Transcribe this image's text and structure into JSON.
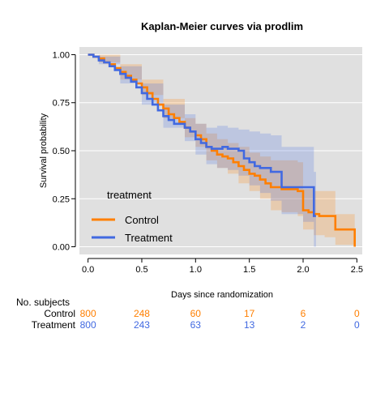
{
  "chart_data": {
    "type": "line",
    "title": "Kaplan-Meier curves via prodlim",
    "xlabel": "Days since randomization",
    "ylabel": "Survival probability",
    "xlim": [
      -0.08,
      2.55
    ],
    "ylim": [
      -0.04,
      1.04
    ],
    "x_ticks": [
      0.0,
      0.5,
      1.0,
      1.5,
      2.0,
      2.5
    ],
    "x_tick_labels": [
      "0.0",
      "0.5",
      "1.0",
      "1.5",
      "2.0",
      "2.5"
    ],
    "y_ticks": [
      0.0,
      0.25,
      0.5,
      0.75,
      1.0
    ],
    "y_tick_labels": [
      "0.00",
      "0.25",
      "0.50",
      "0.75",
      "1.00"
    ],
    "grid": true,
    "background": "#e0e0e0",
    "legend": {
      "title": "treatment",
      "position": "bottom-left"
    },
    "series": [
      {
        "name": "Control",
        "color": "#ff7f00",
        "points": [
          [
            0.0,
            1.0
          ],
          [
            0.05,
            0.99
          ],
          [
            0.1,
            0.98
          ],
          [
            0.15,
            0.96
          ],
          [
            0.2,
            0.95
          ],
          [
            0.25,
            0.93
          ],
          [
            0.3,
            0.91
          ],
          [
            0.35,
            0.89
          ],
          [
            0.4,
            0.87
          ],
          [
            0.45,
            0.85
          ],
          [
            0.5,
            0.83
          ],
          [
            0.55,
            0.8
          ],
          [
            0.6,
            0.77
          ],
          [
            0.65,
            0.74
          ],
          [
            0.7,
            0.72
          ],
          [
            0.75,
            0.69
          ],
          [
            0.8,
            0.67
          ],
          [
            0.85,
            0.65
          ],
          [
            0.9,
            0.62
          ],
          [
            0.95,
            0.6
          ],
          [
            1.0,
            0.58
          ],
          [
            1.05,
            0.56
          ],
          [
            1.1,
            0.52
          ],
          [
            1.15,
            0.5
          ],
          [
            1.2,
            0.48
          ],
          [
            1.25,
            0.47
          ],
          [
            1.3,
            0.46
          ],
          [
            1.35,
            0.44
          ],
          [
            1.4,
            0.42
          ],
          [
            1.45,
            0.4
          ],
          [
            1.5,
            0.38
          ],
          [
            1.55,
            0.37
          ],
          [
            1.6,
            0.35
          ],
          [
            1.65,
            0.33
          ],
          [
            1.7,
            0.31
          ],
          [
            1.8,
            0.3
          ],
          [
            1.95,
            0.29
          ],
          [
            2.0,
            0.19
          ],
          [
            2.05,
            0.18
          ],
          [
            2.1,
            0.17
          ],
          [
            2.15,
            0.16
          ],
          [
            2.25,
            0.16
          ],
          [
            2.3,
            0.09
          ],
          [
            2.48,
            0.09
          ],
          [
            2.48,
            0.0
          ]
        ],
        "ci_upper": [
          [
            0.0,
            1.0
          ],
          [
            0.1,
            1.0
          ],
          [
            0.3,
            0.95
          ],
          [
            0.5,
            0.87
          ],
          [
            0.7,
            0.77
          ],
          [
            0.9,
            0.67
          ],
          [
            1.0,
            0.64
          ],
          [
            1.1,
            0.59
          ],
          [
            1.2,
            0.56
          ],
          [
            1.3,
            0.54
          ],
          [
            1.4,
            0.52
          ],
          [
            1.5,
            0.49
          ],
          [
            1.6,
            0.47
          ],
          [
            1.7,
            0.45
          ],
          [
            1.8,
            0.45
          ],
          [
            1.95,
            0.44
          ],
          [
            2.0,
            0.3
          ],
          [
            2.1,
            0.29
          ],
          [
            2.2,
            0.29
          ],
          [
            2.25,
            0.29
          ],
          [
            2.3,
            0.17
          ],
          [
            2.48,
            0.17
          ]
        ],
        "ci_lower": [
          [
            0.0,
            1.0
          ],
          [
            0.1,
            0.96
          ],
          [
            0.3,
            0.87
          ],
          [
            0.5,
            0.79
          ],
          [
            0.7,
            0.67
          ],
          [
            0.9,
            0.57
          ],
          [
            1.0,
            0.52
          ],
          [
            1.1,
            0.45
          ],
          [
            1.2,
            0.41
          ],
          [
            1.3,
            0.38
          ],
          [
            1.4,
            0.33
          ],
          [
            1.5,
            0.29
          ],
          [
            1.6,
            0.25
          ],
          [
            1.7,
            0.19
          ],
          [
            1.8,
            0.18
          ],
          [
            1.95,
            0.16
          ],
          [
            2.0,
            0.09
          ],
          [
            2.1,
            0.06
          ],
          [
            2.2,
            0.05
          ],
          [
            2.25,
            0.05
          ],
          [
            2.3,
            0.01
          ],
          [
            2.48,
            0.01
          ]
        ]
      },
      {
        "name": "Treatment",
        "color": "#4169e1",
        "points": [
          [
            0.0,
            1.0
          ],
          [
            0.05,
            0.99
          ],
          [
            0.1,
            0.97
          ],
          [
            0.15,
            0.96
          ],
          [
            0.2,
            0.94
          ],
          [
            0.25,
            0.92
          ],
          [
            0.3,
            0.9
          ],
          [
            0.35,
            0.88
          ],
          [
            0.4,
            0.86
          ],
          [
            0.45,
            0.83
          ],
          [
            0.5,
            0.8
          ],
          [
            0.55,
            0.77
          ],
          [
            0.6,
            0.74
          ],
          [
            0.65,
            0.71
          ],
          [
            0.7,
            0.68
          ],
          [
            0.75,
            0.66
          ],
          [
            0.8,
            0.64
          ],
          [
            0.9,
            0.62
          ],
          [
            0.95,
            0.6
          ],
          [
            1.0,
            0.56
          ],
          [
            1.05,
            0.54
          ],
          [
            1.1,
            0.52
          ],
          [
            1.15,
            0.51
          ],
          [
            1.2,
            0.51
          ],
          [
            1.25,
            0.52
          ],
          [
            1.3,
            0.51
          ],
          [
            1.4,
            0.5
          ],
          [
            1.45,
            0.46
          ],
          [
            1.5,
            0.44
          ],
          [
            1.55,
            0.42
          ],
          [
            1.6,
            0.41
          ],
          [
            1.65,
            0.41
          ],
          [
            1.7,
            0.39
          ],
          [
            1.8,
            0.31
          ],
          [
            2.0,
            0.31
          ],
          [
            2.05,
            0.31
          ],
          [
            2.1,
            0.16
          ],
          [
            2.12,
            0.16
          ]
        ],
        "ci_upper": [
          [
            0.0,
            1.0
          ],
          [
            0.1,
            0.99
          ],
          [
            0.3,
            0.94
          ],
          [
            0.5,
            0.85
          ],
          [
            0.7,
            0.74
          ],
          [
            0.9,
            0.69
          ],
          [
            1.0,
            0.64
          ],
          [
            1.1,
            0.62
          ],
          [
            1.2,
            0.63
          ],
          [
            1.3,
            0.62
          ],
          [
            1.4,
            0.61
          ],
          [
            1.5,
            0.6
          ],
          [
            1.6,
            0.59
          ],
          [
            1.7,
            0.58
          ],
          [
            1.8,
            0.52
          ],
          [
            2.0,
            0.52
          ],
          [
            2.05,
            0.52
          ],
          [
            2.1,
            0.39
          ],
          [
            2.12,
            0.39
          ]
        ],
        "ci_lower": [
          [
            0.0,
            1.0
          ],
          [
            0.1,
            0.95
          ],
          [
            0.3,
            0.85
          ],
          [
            0.5,
            0.74
          ],
          [
            0.7,
            0.62
          ],
          [
            0.9,
            0.55
          ],
          [
            1.0,
            0.48
          ],
          [
            1.1,
            0.43
          ],
          [
            1.2,
            0.41
          ],
          [
            1.3,
            0.4
          ],
          [
            1.4,
            0.37
          ],
          [
            1.5,
            0.32
          ],
          [
            1.6,
            0.28
          ],
          [
            1.7,
            0.24
          ],
          [
            1.8,
            0.17
          ],
          [
            2.0,
            0.13
          ],
          [
            2.05,
            0.13
          ],
          [
            2.1,
            0.0
          ],
          [
            2.12,
            0.0
          ]
        ]
      }
    ],
    "risk_table": {
      "header": "No. subjects",
      "times": [
        0.0,
        0.5,
        1.0,
        1.5,
        2.0,
        2.5
      ],
      "rows": [
        {
          "label": "Control",
          "color": "#ff7f00",
          "values": [
            "800",
            "248",
            "60",
            "17",
            "6",
            "0"
          ]
        },
        {
          "label": "Treatment",
          "color": "#4169e1",
          "values": [
            "800",
            "243",
            "63",
            "13",
            "2",
            "0"
          ]
        }
      ]
    }
  }
}
